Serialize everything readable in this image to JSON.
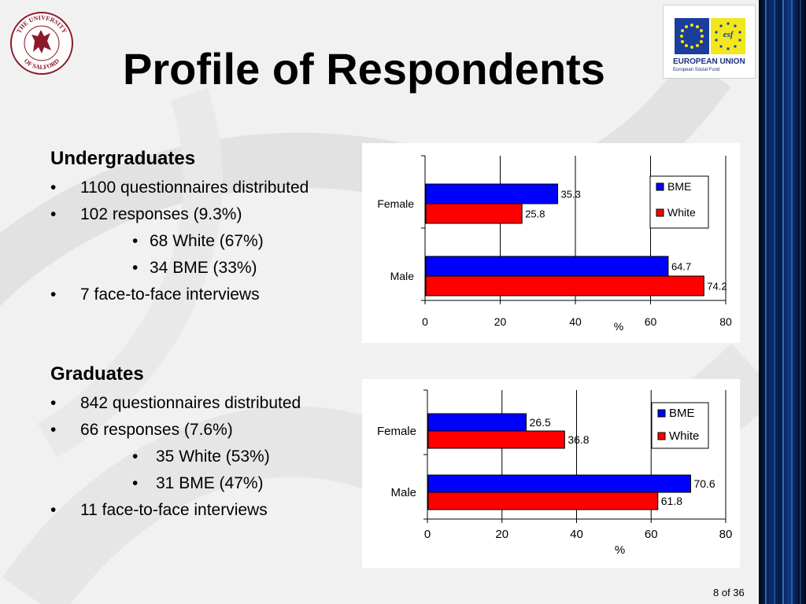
{
  "slide": {
    "title": "Profile of Respondents",
    "page_number": "8 of 36"
  },
  "logos": {
    "university": {
      "name": "THE UNIVERSITY OF SALFORD",
      "text_top": "THE UNIVERSITY",
      "text_bottom": "OF SALFORD"
    },
    "eu": {
      "line1": "EUROPEAN UNION",
      "line2": "European Social Fund",
      "esf": "esf"
    }
  },
  "undergraduates": {
    "heading": "Undergraduates",
    "items": [
      {
        "level": 1,
        "text": "1100 questionnaires distributed"
      },
      {
        "level": 1,
        "text": "102 responses (9.3%)"
      },
      {
        "level": 2,
        "text": "68 White (67%)"
      },
      {
        "level": 2,
        "text": "34 BME (33%)"
      },
      {
        "level": 1,
        "text": "7 face-to-face interviews"
      }
    ]
  },
  "graduates": {
    "heading": "Graduates",
    "items": [
      {
        "level": 1,
        "text": "842 questionnaires distributed"
      },
      {
        "level": 1,
        "text": "66 responses (7.6%)"
      },
      {
        "level": 2,
        "text": "35 White (53%)"
      },
      {
        "level": 2,
        "text": "31 BME (47%)"
      },
      {
        "level": 1,
        "text": "11 face-to-face interviews"
      }
    ]
  },
  "chart_data": [
    {
      "type": "bar",
      "orientation": "horizontal",
      "categories": [
        "Female",
        "Male"
      ],
      "series": [
        {
          "name": "BME",
          "color": "#0000ff",
          "values": [
            35.3,
            64.7
          ]
        },
        {
          "name": "White",
          "color": "#ff0000",
          "values": [
            25.8,
            74.2
          ]
        }
      ],
      "xlabel": "%",
      "xlim": [
        0,
        80
      ],
      "xticks": [
        0,
        20,
        40,
        60,
        80
      ],
      "grid": true,
      "legend": "right",
      "data_labels": true
    },
    {
      "type": "bar",
      "orientation": "horizontal",
      "categories": [
        "Female",
        "Male"
      ],
      "series": [
        {
          "name": "BME",
          "color": "#0000ff",
          "values": [
            26.5,
            70.6
          ]
        },
        {
          "name": "White",
          "color": "#ff0000",
          "values": [
            36.8,
            61.8
          ]
        }
      ],
      "xlabel": "%",
      "xlim": [
        0,
        80
      ],
      "xticks": [
        0,
        20,
        40,
        60,
        80
      ],
      "grid": true,
      "legend": "right",
      "data_labels": true
    }
  ]
}
